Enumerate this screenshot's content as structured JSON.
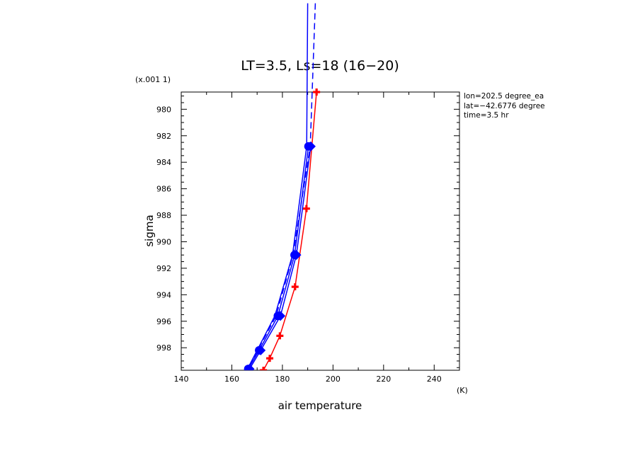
{
  "chart_data": {
    "type": "line",
    "title": "LT=3.5, Ls=18 (16−20)",
    "xlabel": "air temperature",
    "ylabel": "sigma",
    "x_unit": "(K)",
    "y_scale_note": "(x.001 1)",
    "xlim": [
      140,
      250
    ],
    "ylim": [
      999.7,
      978.7
    ],
    "y_inverted": true,
    "x_ticks": [
      140,
      160,
      180,
      200,
      220,
      240
    ],
    "y_ticks": [
      980,
      982,
      984,
      986,
      988,
      990,
      992,
      994,
      996,
      998
    ],
    "info_lines": [
      "lon=202.5 degree_ea",
      "lat=−42.6776 degree",
      "time=3.5 hr"
    ],
    "series": [
      {
        "color": "#ff0000",
        "marker": "plus",
        "dash": "solid",
        "points": [
          [
            193.5,
            978.7
          ],
          [
            189.5,
            987.5
          ],
          [
            185.0,
            993.4
          ],
          [
            179.0,
            997.1
          ],
          [
            175.0,
            998.8
          ],
          [
            172.5,
            999.7
          ]
        ]
      },
      {
        "color": "#0000ff",
        "marker": "circle",
        "dash": "solid",
        "points": [
          [
            190.3,
            982.8
          ],
          [
            184.8,
            991.0
          ],
          [
            178.2,
            995.6
          ],
          [
            170.8,
            998.2
          ],
          [
            166.5,
            999.6
          ]
        ]
      },
      {
        "color": "#0000ff",
        "marker": "diamond",
        "dash": "solid",
        "points": [
          [
            191.2,
            982.8
          ],
          [
            185.5,
            991.0
          ],
          [
            179.2,
            995.6
          ],
          [
            171.4,
            998.2
          ],
          [
            167.0,
            999.6
          ]
        ]
      },
      {
        "color": "#0000ff",
        "marker": "none",
        "dash": "dash",
        "points": [
          [
            193.0,
            972.0
          ],
          [
            191.0,
            982.8
          ],
          [
            184.2,
            991.0
          ],
          [
            177.5,
            995.6
          ],
          [
            170.2,
            998.2
          ],
          [
            166.3,
            999.6
          ]
        ]
      },
      {
        "color": "#0000ff",
        "marker": "none",
        "dash": "solid",
        "points": [
          [
            190.0,
            972.0
          ],
          [
            189.6,
            982.8
          ],
          [
            184.0,
            991.0
          ],
          [
            177.0,
            995.6
          ],
          [
            170.0,
            998.2
          ],
          [
            166.2,
            999.6
          ]
        ]
      }
    ]
  }
}
